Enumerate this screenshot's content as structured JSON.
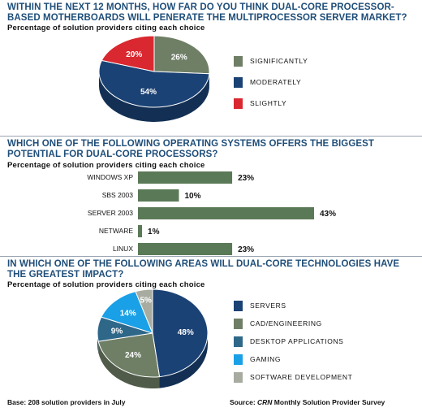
{
  "colors": {
    "title": "#1f4e79",
    "dark_blue": "#1b4275",
    "green_gray": "#6f7f66",
    "red": "#d9282f",
    "steel": "#2f6789",
    "cyan": "#1aa0e6",
    "light_gray": "#a8aca0",
    "bar": "#5a7a57"
  },
  "section1": {
    "title": "Within the next 12 months, how far do you think dual-core processor-based motherboards will penerate the multiprocessor server market?",
    "subtitle": "Percentage of solution providers citing each choice"
  },
  "section2": {
    "title": "Which one of the following operating systems offers the biggest potential for dual-core processors?",
    "subtitle": "Percentage of solution providers citing each choice"
  },
  "section3": {
    "title": "In which one of the following areas will dual-core technologies have the greatest impact?",
    "subtitle": "Percentage of solution providers citing each choice"
  },
  "chart_data": [
    {
      "type": "pie",
      "style": "3d",
      "categories": [
        "Significantly",
        "Moderately",
        "Slightly"
      ],
      "values": [
        26,
        54,
        20
      ],
      "labels": [
        "26%",
        "54%",
        "20%"
      ],
      "colors": [
        "#6f7f66",
        "#1b4275",
        "#d9282f"
      ],
      "legend": [
        "SIGNIFICANTLY",
        "MODERATELY",
        "SLIGHTLY"
      ],
      "legend_placement": "right"
    },
    {
      "type": "bar",
      "orientation": "horizontal",
      "categories": [
        "WINDOWS XP",
        "SBS 2003",
        "SERVER 2003",
        "NETWARE",
        "LINUX"
      ],
      "values": [
        23,
        10,
        43,
        1,
        23
      ],
      "labels": [
        "23%",
        "10%",
        "43%",
        "1%",
        "23%"
      ],
      "xlim": [
        0,
        45
      ],
      "grid": false
    },
    {
      "type": "pie",
      "style": "3d",
      "categories": [
        "Servers",
        "CAD/Engineering",
        "Desktop applications",
        "Gaming",
        "Software development"
      ],
      "values": [
        48,
        24,
        9,
        14,
        5
      ],
      "labels": [
        "48%",
        "24%",
        "9%",
        "14%",
        "5%"
      ],
      "colors": [
        "#1b4275",
        "#6f7f66",
        "#2f6789",
        "#1aa0e6",
        "#a8aca0"
      ],
      "legend": [
        "SERVERS",
        "CAD/ENGINEERING",
        "DESKTOP APPLICATIONS",
        "GAMING",
        "SOFTWARE DEVELOPMENT"
      ],
      "legend_placement": "right"
    }
  ],
  "footer": {
    "base": "Base: 208 solution providers in July",
    "source_prefix": "Source: ",
    "source_italic": "CRN",
    "source_suffix": " Monthly Solution Provider Survey"
  }
}
